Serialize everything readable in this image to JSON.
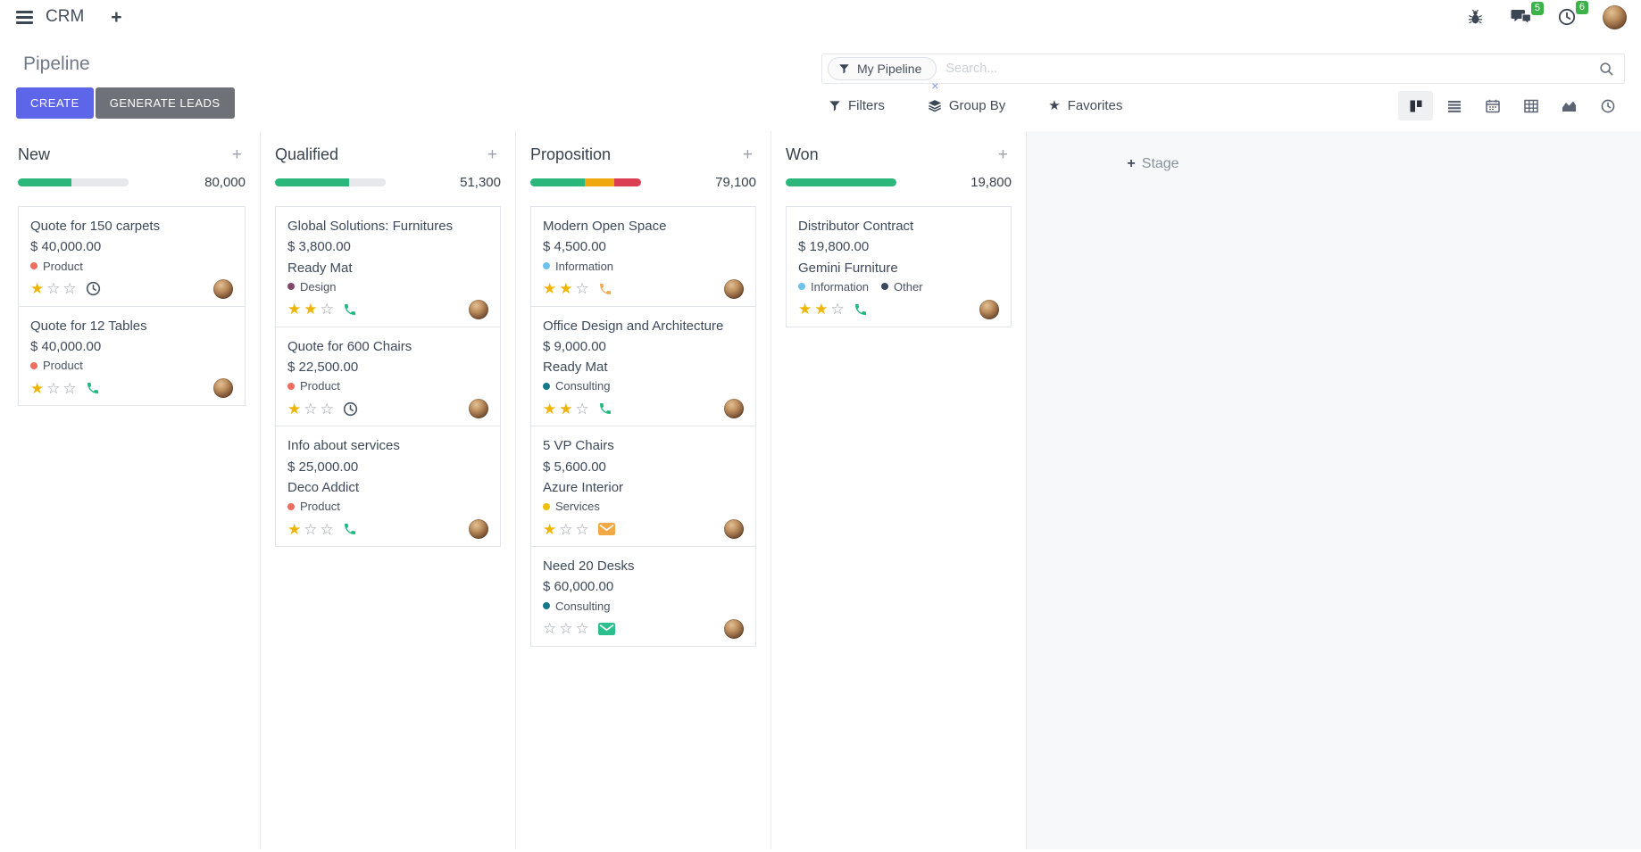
{
  "topbar": {
    "app_name": "CRM",
    "message_badge": "5",
    "activity_badge": "6"
  },
  "control": {
    "title": "Pipeline",
    "create_label": "CREATE",
    "generate_label": "GENERATE LEADS",
    "facet_label": "My Pipeline",
    "search_placeholder": "Search...",
    "filters_label": "Filters",
    "group_by_label": "Group By",
    "favorites_label": "Favorites"
  },
  "add_stage_label": "Stage",
  "glyphs": {
    "plus": "+",
    "close": "×",
    "star_filled": "★",
    "star_empty": "☆"
  },
  "colors": {
    "accent": "#5D66E8",
    "green": "#2BB77B",
    "orange": "#EFA80D",
    "red": "#DB3E52",
    "bar_bg": "#E6E8EB",
    "badge_green": "#3CB34A"
  },
  "columns": [
    {
      "name": "New",
      "total": "80,000",
      "progress": [
        {
          "color": "#2BB77B",
          "pct": 48
        },
        {
          "color": "#E6E8EB",
          "pct": 52
        }
      ],
      "cards": [
        {
          "title": "Quote for 150 carpets",
          "amount": "$ 40,000.00",
          "partner": "",
          "tags": [
            {
              "label": "Product",
              "color": "#ED6D60"
            }
          ],
          "stars": 1,
          "activity": "clock",
          "activity_color": "#4B5563"
        },
        {
          "title": "Quote for 12 Tables",
          "amount": "$ 40,000.00",
          "partner": "",
          "tags": [
            {
              "label": "Product",
              "color": "#ED6D60"
            }
          ],
          "stars": 1,
          "activity": "phone",
          "activity_color": "#1FB97E"
        }
      ]
    },
    {
      "name": "Qualified",
      "total": "51,300",
      "progress": [
        {
          "color": "#2BB77B",
          "pct": 67
        },
        {
          "color": "#E6E8EB",
          "pct": 33
        }
      ],
      "cards": [
        {
          "title": "Global Solutions: Furnitures",
          "amount": "$ 3,800.00",
          "partner": "Ready Mat",
          "tags": [
            {
              "label": "Design",
              "color": "#814968"
            }
          ],
          "stars": 2,
          "activity": "phone",
          "activity_color": "#1FB97E"
        },
        {
          "title": "Quote for 600 Chairs",
          "amount": "$ 22,500.00",
          "partner": "",
          "tags": [
            {
              "label": "Product",
              "color": "#ED6D60"
            }
          ],
          "stars": 1,
          "activity": "clock",
          "activity_color": "#4B5563"
        },
        {
          "title": "Info about services",
          "amount": "$ 25,000.00",
          "partner": "Deco Addict",
          "tags": [
            {
              "label": "Product",
              "color": "#ED6D60"
            }
          ],
          "stars": 1,
          "activity": "phone",
          "activity_color": "#1FB97E"
        }
      ]
    },
    {
      "name": "Proposition",
      "total": "79,100",
      "progress": [
        {
          "color": "#2BB77B",
          "pct": 49
        },
        {
          "color": "#EFA80D",
          "pct": 27
        },
        {
          "color": "#DB3E52",
          "pct": 24
        }
      ],
      "cards": [
        {
          "title": "Modern Open Space",
          "amount": "$ 4,500.00",
          "partner": "",
          "tags": [
            {
              "label": "Information",
              "color": "#6CC1ED"
            }
          ],
          "stars": 2,
          "activity": "phone",
          "activity_color": "#EFAC57"
        },
        {
          "title": "Office Design and Architecture",
          "amount": "$ 9,000.00",
          "partner": "Ready Mat",
          "tags": [
            {
              "label": "Consulting",
              "color": "#16798A"
            }
          ],
          "stars": 2,
          "activity": "phone",
          "activity_color": "#1FB97E"
        },
        {
          "title": "5 VP Chairs",
          "amount": "$ 5,600.00",
          "partner": "Azure Interior",
          "tags": [
            {
              "label": "Services",
              "color": "#EEC001"
            }
          ],
          "stars": 1,
          "activity": "envelope",
          "activity_color": "#F0A944"
        },
        {
          "title": "Need 20 Desks",
          "amount": "$ 60,000.00",
          "partner": "",
          "tags": [
            {
              "label": "Consulting",
              "color": "#16798A"
            }
          ],
          "stars": 0,
          "activity": "envelope",
          "activity_color": "#2DBE8D"
        }
      ]
    },
    {
      "name": "Won",
      "total": "19,800",
      "progress": [
        {
          "color": "#2BB77B",
          "pct": 100
        }
      ],
      "cards": [
        {
          "title": "Distributor Contract",
          "amount": "$ 19,800.00",
          "partner": "Gemini Furniture",
          "tags": [
            {
              "label": "Information",
              "color": "#6CC1ED"
            },
            {
              "label": "Other",
              "color": "#3A4A5C"
            }
          ],
          "stars": 2,
          "activity": "phone",
          "activity_color": "#1FB97E"
        }
      ]
    }
  ]
}
